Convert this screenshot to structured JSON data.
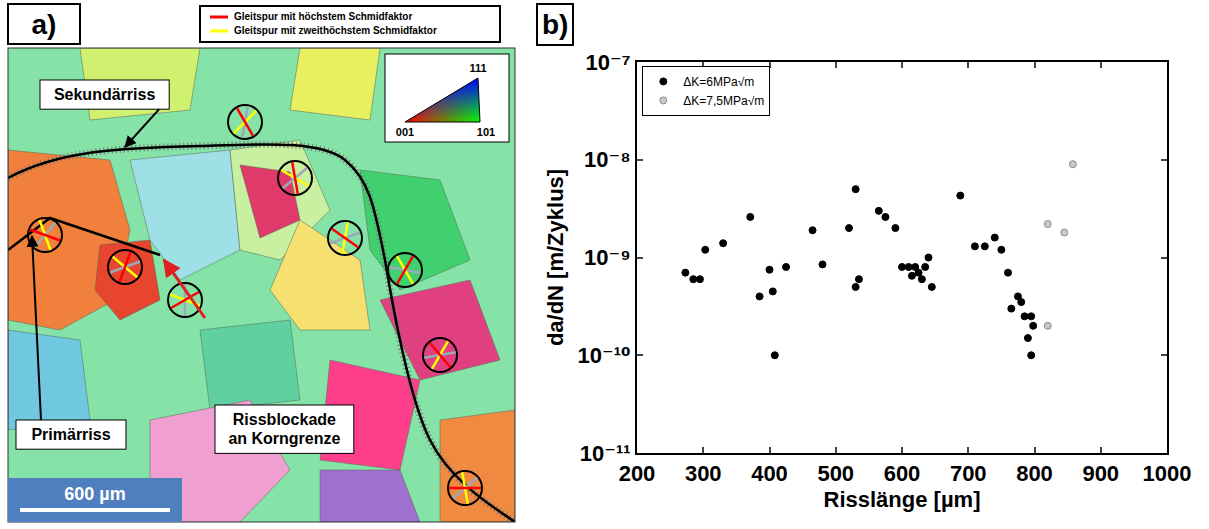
{
  "panel_a": {
    "label": "a)",
    "legend": [
      {
        "text": "Gleitspur mit höchstem Schmidfaktor",
        "color": "#ff0000"
      },
      {
        "text": "Gleitspur mit zweithöchstem Schmidfaktor",
        "color": "#ffff00"
      }
    ],
    "color_key": {
      "top": "111",
      "left": "001",
      "right": "101"
    },
    "annotations": {
      "secondary_crack": "Sekundärriss",
      "primary_crack": "Primärriss",
      "crack_arrest": "Rissblockade an Korngrenze"
    },
    "scale_bar": {
      "value": 600,
      "label": "600 µm"
    }
  },
  "chart_data": {
    "type": "scatter",
    "panel_label": "b)",
    "x_label": "Risslänge [µm]",
    "y_label": "da/dN [m/Zyklus]",
    "log": "y",
    "grid": false,
    "legend": "top left",
    "marker": "circle",
    "xlim": [
      200,
      1000
    ],
    "xticks": [
      200,
      300,
      400,
      500,
      600,
      700,
      800,
      900,
      1000
    ],
    "ylim": [
      1e-11,
      1e-07
    ],
    "yticks": [
      {
        "value": 1e-11,
        "label": "10⁻¹¹"
      },
      {
        "value": 1e-10,
        "label": "10⁻¹⁰"
      },
      {
        "value": 1e-09,
        "label": "10⁻⁹"
      },
      {
        "value": 1e-08,
        "label": "10⁻⁸"
      },
      {
        "value": 1e-07,
        "label": "10⁻⁷"
      }
    ],
    "series": [
      {
        "name": "ΔK=6MPa√m",
        "color": "#000000",
        "x": [
          273,
          285,
          295,
          303,
          330,
          371,
          385,
          400,
          405,
          408,
          425,
          465,
          480,
          520,
          530,
          530,
          535,
          565,
          575,
          590,
          600,
          610,
          615,
          620,
          625,
          630,
          635,
          640,
          645,
          688,
          710,
          725,
          740,
          750,
          760,
          765,
          775,
          780,
          785,
          790,
          795,
          795,
          798
        ],
        "values": [
          7e-10,
          6e-10,
          6e-10,
          1.2e-09,
          1.4e-09,
          2.6e-09,
          4e-10,
          7.5e-10,
          4.5e-10,
          1e-10,
          8e-10,
          1.9e-09,
          8.5e-10,
          2e-09,
          5e-09,
          5e-10,
          6e-10,
          3e-09,
          2.6e-09,
          2e-09,
          8e-10,
          8e-10,
          6.5e-10,
          8e-10,
          7e-10,
          6e-10,
          8e-10,
          1e-09,
          5e-10,
          4.3e-09,
          1.3e-09,
          1.3e-09,
          1.6e-09,
          1.2e-09,
          7e-10,
          3e-10,
          4e-10,
          3.5e-10,
          2.5e-10,
          1.5e-10,
          2.5e-10,
          1e-10,
          2e-10
        ]
      },
      {
        "name": "ΔK=7,5MPa√m",
        "color": "#c8c8c8",
        "x": [
          820,
          820,
          845,
          858
        ],
        "values": [
          2.2e-09,
          2e-10,
          1.8e-09,
          9e-09
        ]
      }
    ]
  }
}
